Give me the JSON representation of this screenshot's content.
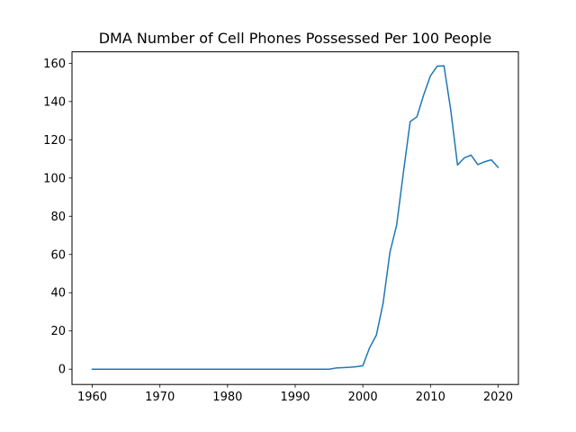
{
  "chart_data": {
    "type": "line",
    "title": "DMA Number of Cell Phones Possessed Per 100 People",
    "xlabel": "",
    "ylabel": "",
    "xlim": [
      1957,
      2023
    ],
    "ylim": [
      -8,
      166
    ],
    "x_ticks": [
      1960,
      1970,
      1980,
      1990,
      2000,
      2010,
      2020
    ],
    "y_ticks": [
      0,
      20,
      40,
      60,
      80,
      100,
      120,
      140,
      160
    ],
    "grid": false,
    "legend": "none",
    "series": [
      {
        "color": "#1f77b4",
        "x": [
          1960,
          1961,
          1962,
          1963,
          1964,
          1965,
          1966,
          1967,
          1968,
          1969,
          1970,
          1971,
          1972,
          1973,
          1974,
          1975,
          1976,
          1977,
          1978,
          1979,
          1980,
          1981,
          1982,
          1983,
          1984,
          1985,
          1986,
          1987,
          1988,
          1989,
          1990,
          1991,
          1992,
          1993,
          1994,
          1995,
          1996,
          1997,
          1998,
          1999,
          2000,
          2001,
          2002,
          2003,
          2004,
          2005,
          2006,
          2007,
          2008,
          2009,
          2010,
          2011,
          2012,
          2013,
          2014,
          2015,
          2016,
          2017,
          2018,
          2019,
          2020
        ],
        "y": [
          0,
          0,
          0,
          0,
          0,
          0,
          0,
          0,
          0,
          0,
          0,
          0,
          0,
          0,
          0,
          0,
          0,
          0,
          0,
          0,
          0,
          0,
          0,
          0,
          0,
          0,
          0,
          0,
          0,
          0,
          0,
          0,
          0,
          0,
          0,
          0,
          0.6,
          0.8,
          1.0,
          1.3,
          1.8,
          11.2,
          17.8,
          34.6,
          61.0,
          75.4,
          103.0,
          129.5,
          132.0,
          143.5,
          153.5,
          158.5,
          158.7,
          135.5,
          106.8,
          110.5,
          112.0,
          107.0,
          108.5,
          109.5,
          105.6
        ]
      }
    ]
  }
}
